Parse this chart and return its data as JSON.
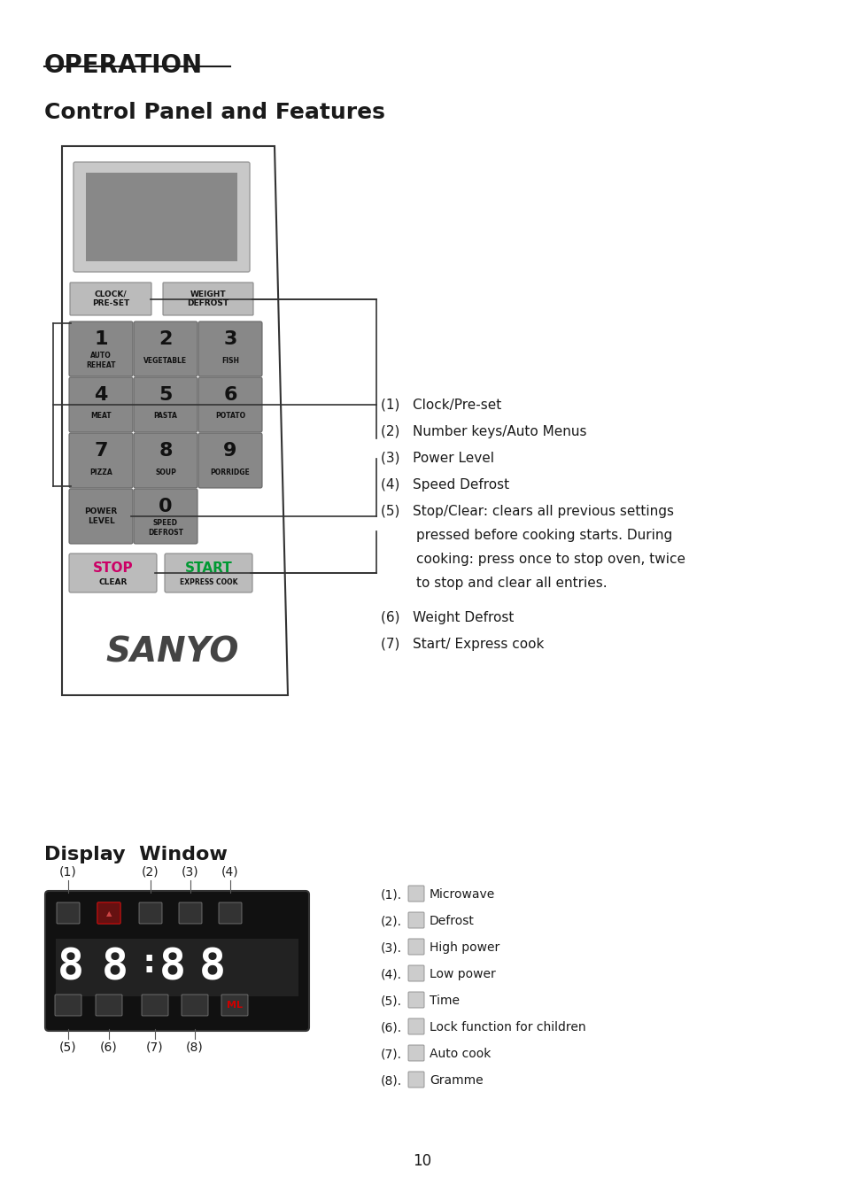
{
  "title_operation": "OPERATION",
  "title_control": "Control Panel and Features",
  "title_display": "Display  Window",
  "page_number": "10",
  "bg_color": "#ffffff",
  "control_panel_notes": [
    "(1)   Clock/Pre-set",
    "(2)   Number keys/Auto Menus",
    "(3)   Power Level",
    "(4)   Speed Defrost",
    "(5)   Stop/Clear: clears all previous settings\n        pressed before cooking starts. During\n\n        cooking: press once to stop oven, twice\n\n        to stop and clear all entries.",
    "(6)   Weight Defrost",
    "(7)   Start/ Express cook"
  ],
  "display_notes": [
    "(1).   Microwave",
    "(2).   Defrost",
    "(3).   High power",
    "(4).   Low power",
    "(5).   Time",
    "(6).   Lock function for children",
    "(7).   Auto cook",
    "(8).   Gramme"
  ],
  "num_keys": [
    [
      "1\nAUTO\nREHEAT",
      "2\nVEGETABLE",
      "3\nFISH"
    ],
    [
      "4\nMEAT",
      "5\nPASTA",
      "6\nPOTATO"
    ],
    [
      "7\nPIZZA",
      "8\nSOUP",
      "9\nPORRIDGE"
    ]
  ],
  "btn_color_dark": "#888888",
  "btn_color_light": "#cccccc",
  "panel_border": "#000000",
  "display_bg": "#111111",
  "display_digit_color": "#ffffff",
  "stop_color": "#cc0066",
  "start_color": "#009933",
  "ml_color": "#cc0000",
  "sanyo_color": "#333333"
}
